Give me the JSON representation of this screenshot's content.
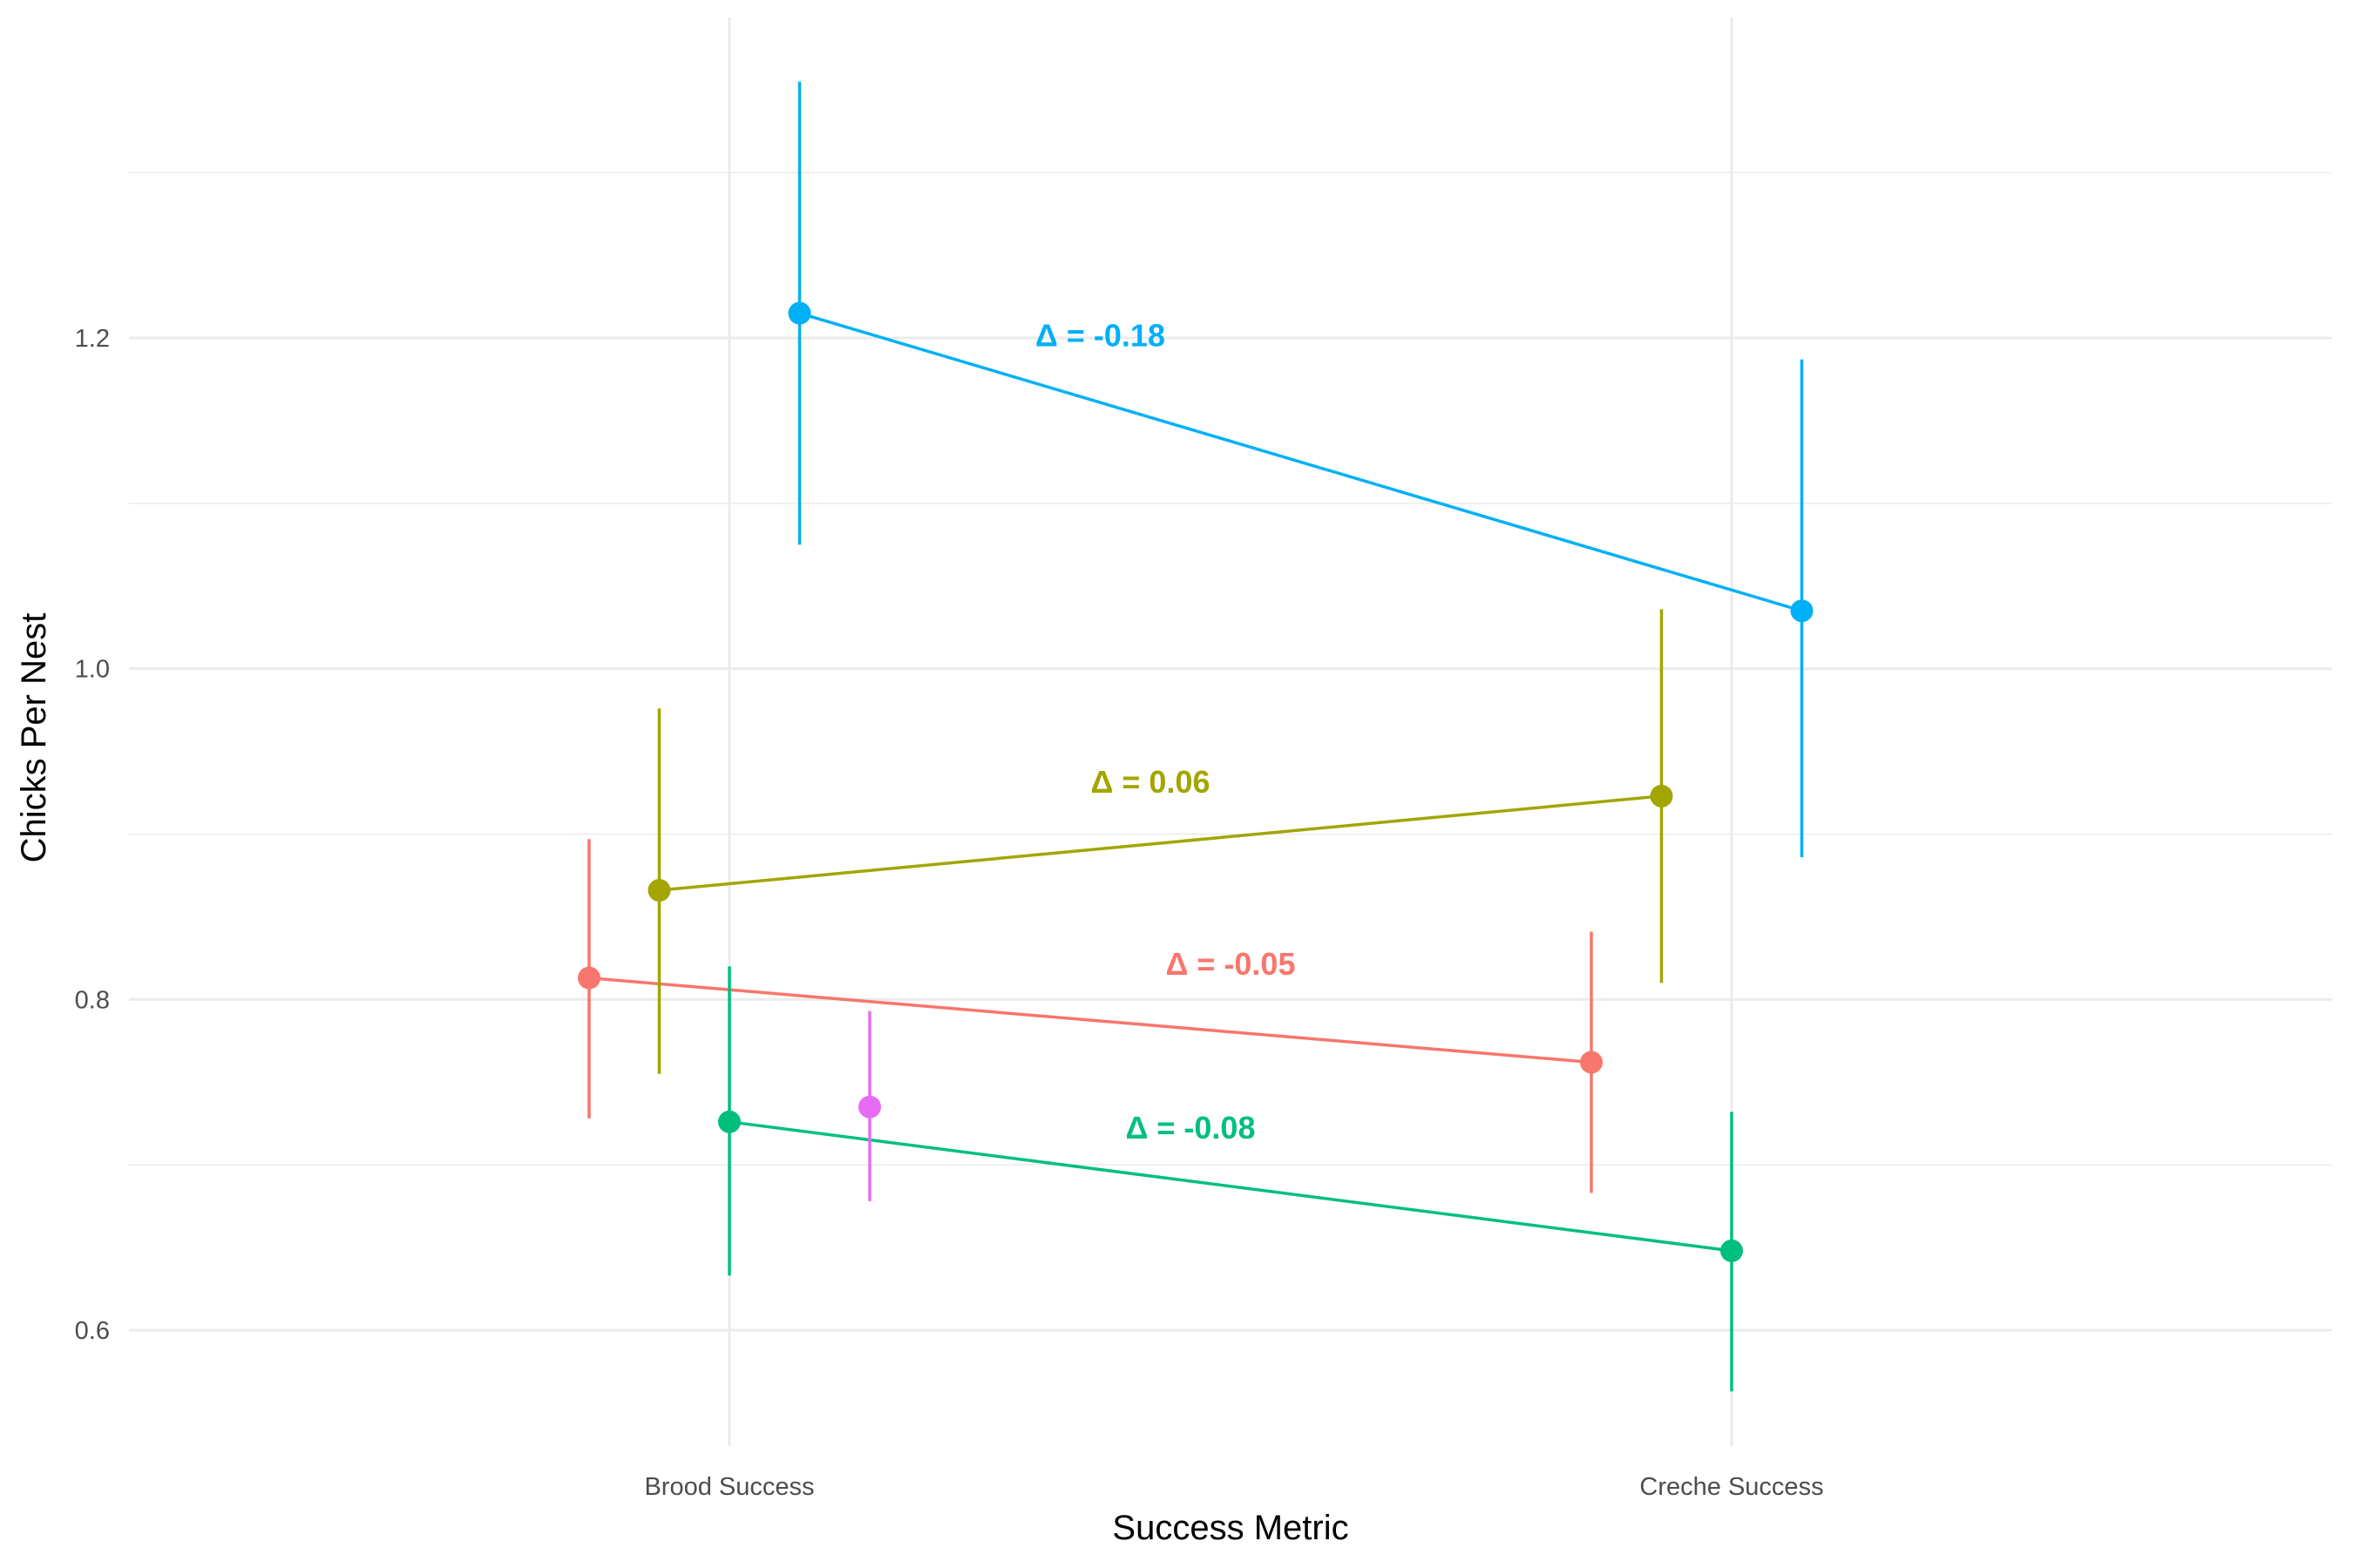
{
  "chart_data": {
    "type": "line",
    "title": "",
    "xlabel": "Success Metric",
    "ylabel": "Chicks Per Nest",
    "categories": [
      "Brood Success",
      "Creche Success"
    ],
    "ylim": [
      0.53,
      1.34
    ],
    "yticks": [
      0.6,
      0.8,
      1.0,
      1.2
    ],
    "ytick_labels": [
      "0.6",
      "0.8",
      "1.0",
      "1.2"
    ],
    "grid": true,
    "legend": "none",
    "series": [
      {
        "color": "#F8766D",
        "dodge": 0.14,
        "values": [
          0.813,
          0.762
        ],
        "ci_low": [
          0.728,
          0.683
        ],
        "ci_high": [
          0.897,
          0.841
        ],
        "delta_label": "Δ =  -0.05",
        "delta_pos": {
          "x": 1.5,
          "y": 0.82
        }
      },
      {
        "color": "#A3A500",
        "dodge": 0.07,
        "values": [
          0.866,
          0.923
        ],
        "ci_low": [
          0.755,
          0.81
        ],
        "ci_high": [
          0.976,
          1.036
        ],
        "delta_label": "Δ =  0.06",
        "delta_pos": {
          "x": 1.42,
          "y": 0.93
        }
      },
      {
        "color": "#00BF7D",
        "dodge": 0.0,
        "values": [
          0.726,
          0.648
        ],
        "ci_low": [
          0.633,
          0.563
        ],
        "ci_high": [
          0.82,
          0.732
        ],
        "delta_label": "Δ =  -0.08",
        "delta_pos": {
          "x": 1.46,
          "y": 0.721
        }
      },
      {
        "color": "#00B0F6",
        "dodge": -0.07,
        "values": [
          1.215,
          1.035
        ],
        "ci_low": [
          1.075,
          0.886
        ],
        "ci_high": [
          1.355,
          1.187
        ],
        "delta_label": "Δ =  -0.18",
        "delta_pos": {
          "x": 1.37,
          "y": 1.2
        }
      },
      {
        "color": "#E76BF3",
        "dodge": -0.14,
        "values": [
          0.735,
          null
        ],
        "ci_low": [
          0.678,
          null
        ],
        "ci_high": [
          0.793,
          null
        ],
        "delta_label": null,
        "delta_pos": null
      }
    ]
  }
}
